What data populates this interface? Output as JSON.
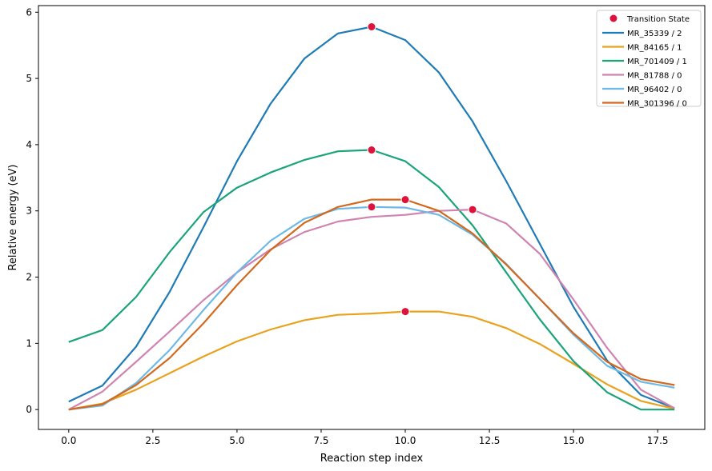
{
  "chart_data": {
    "type": "line",
    "xlabel": "Reaction step index",
    "ylabel": "Relative energy (eV)",
    "xlim": [
      -0.9,
      18.9
    ],
    "ylim": [
      -0.3,
      6.1
    ],
    "xticks": [
      0.0,
      2.5,
      5.0,
      7.5,
      10.0,
      12.5,
      15.0,
      17.5
    ],
    "xtick_labels": [
      "0.0",
      "2.5",
      "5.0",
      "7.5",
      "10.0",
      "12.5",
      "15.0",
      "17.5"
    ],
    "yticks": [
      0,
      1,
      2,
      3,
      4,
      5,
      6
    ],
    "ytick_labels": [
      "0",
      "1",
      "2",
      "3",
      "4",
      "5",
      "6"
    ],
    "grid": false,
    "legend_position": "top-right",
    "transition_state_label": "Transition State",
    "transition_state_color": "#dc143c",
    "series": [
      {
        "name": "MR_35339 / 2",
        "color": "#1f7bb6",
        "x": [
          0,
          1,
          2,
          3,
          4,
          5,
          6,
          7,
          8,
          9,
          10,
          11,
          12,
          13,
          14,
          15,
          16,
          17,
          18
        ],
        "values": [
          0.12,
          0.36,
          0.95,
          1.78,
          2.75,
          3.75,
          4.62,
          5.3,
          5.68,
          5.78,
          5.58,
          5.09,
          4.35,
          3.45,
          2.5,
          1.55,
          0.74,
          0.22,
          0.02
        ],
        "ts_x": 9,
        "ts_y": 5.78
      },
      {
        "name": "MR_84165 / 1",
        "color": "#e8a21e",
        "x": [
          0,
          1,
          2,
          3,
          4,
          5,
          6,
          7,
          8,
          9,
          10,
          11,
          12,
          13,
          14,
          15,
          16,
          17,
          18
        ],
        "values": [
          0.0,
          0.09,
          0.3,
          0.55,
          0.8,
          1.03,
          1.21,
          1.35,
          1.43,
          1.45,
          1.48,
          1.48,
          1.4,
          1.23,
          0.99,
          0.69,
          0.38,
          0.13,
          0.01
        ],
        "ts_x": 10,
        "ts_y": 1.48
      },
      {
        "name": "MR_701409 / 1",
        "color": "#1ba37a",
        "x": [
          0,
          1,
          2,
          3,
          4,
          5,
          6,
          7,
          8,
          9,
          10,
          11,
          12,
          13,
          14,
          15,
          16,
          17,
          18
        ],
        "values": [
          1.02,
          1.2,
          1.7,
          2.38,
          2.98,
          3.35,
          3.58,
          3.77,
          3.9,
          3.92,
          3.75,
          3.36,
          2.78,
          2.07,
          1.36,
          0.73,
          0.26,
          0.0,
          0.0
        ],
        "ts_x": 9,
        "ts_y": 3.92
      },
      {
        "name": "MR_81788 / 0",
        "color": "#cf85b0",
        "x": [
          0,
          1,
          2,
          3,
          4,
          5,
          6,
          7,
          8,
          9,
          10,
          11,
          12,
          13,
          14,
          15,
          16,
          17,
          18
        ],
        "values": [
          0.0,
          0.27,
          0.72,
          1.18,
          1.65,
          2.07,
          2.42,
          2.68,
          2.84,
          2.91,
          2.94,
          3.0,
          3.02,
          2.81,
          2.35,
          1.66,
          0.93,
          0.3,
          0.02
        ],
        "ts_x": 12,
        "ts_y": 3.02
      },
      {
        "name": "MR_96402 / 0",
        "color": "#6cb9e6",
        "x": [
          0,
          1,
          2,
          3,
          4,
          5,
          6,
          7,
          8,
          9,
          10,
          11,
          12,
          13,
          14,
          15,
          16,
          17,
          18
        ],
        "values": [
          0.0,
          0.06,
          0.4,
          0.9,
          1.5,
          2.07,
          2.55,
          2.88,
          3.03,
          3.06,
          3.05,
          2.94,
          2.64,
          2.2,
          1.67,
          1.13,
          0.66,
          0.42,
          0.33
        ],
        "ts_x": 9,
        "ts_y": 3.06
      },
      {
        "name": "MR_301396 / 0",
        "color": "#d2691e",
        "x": [
          0,
          1,
          2,
          3,
          4,
          5,
          6,
          7,
          8,
          9,
          10,
          11,
          12,
          13,
          14,
          15,
          16,
          17,
          18
        ],
        "values": [
          0.0,
          0.08,
          0.37,
          0.78,
          1.3,
          1.88,
          2.41,
          2.82,
          3.06,
          3.17,
          3.17,
          3.0,
          2.66,
          2.19,
          1.67,
          1.15,
          0.72,
          0.46,
          0.37
        ],
        "ts_x": 10,
        "ts_y": 3.17
      }
    ]
  }
}
